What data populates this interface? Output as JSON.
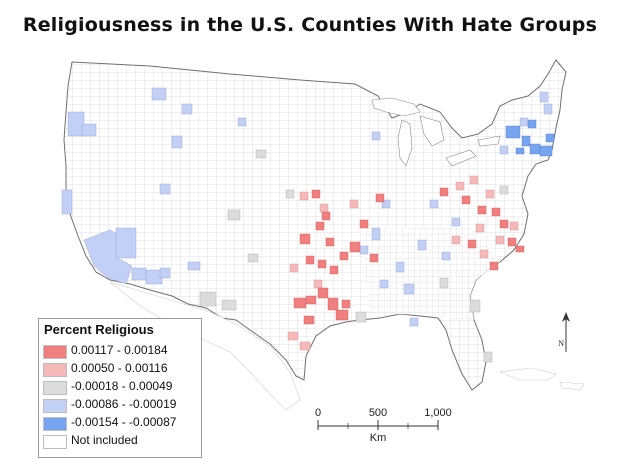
{
  "title": "Religiousness in the U.S. Counties With Hate Groups",
  "legend": {
    "title": "Percent Religious",
    "items": [
      {
        "label": "0.00117 - 0.00184",
        "color": "#f08080"
      },
      {
        "label": "0.00050 - 0.00116",
        "color": "#f6b9b9"
      },
      {
        "label": "-0.00018 - 0.00049",
        "color": "#dcdcdc"
      },
      {
        "label": "-0.00086 - -0.00019",
        "color": "#c3d0f6"
      },
      {
        "label": "-0.00154 - -0.00087",
        "color": "#76a4ef"
      },
      {
        "label": "Not included",
        "color": "#ffffff"
      }
    ]
  },
  "scale_bar": {
    "ticks": [
      "0",
      "500",
      "1,000"
    ],
    "unit": "Km"
  },
  "north_arrow": {
    "label": "N"
  }
}
